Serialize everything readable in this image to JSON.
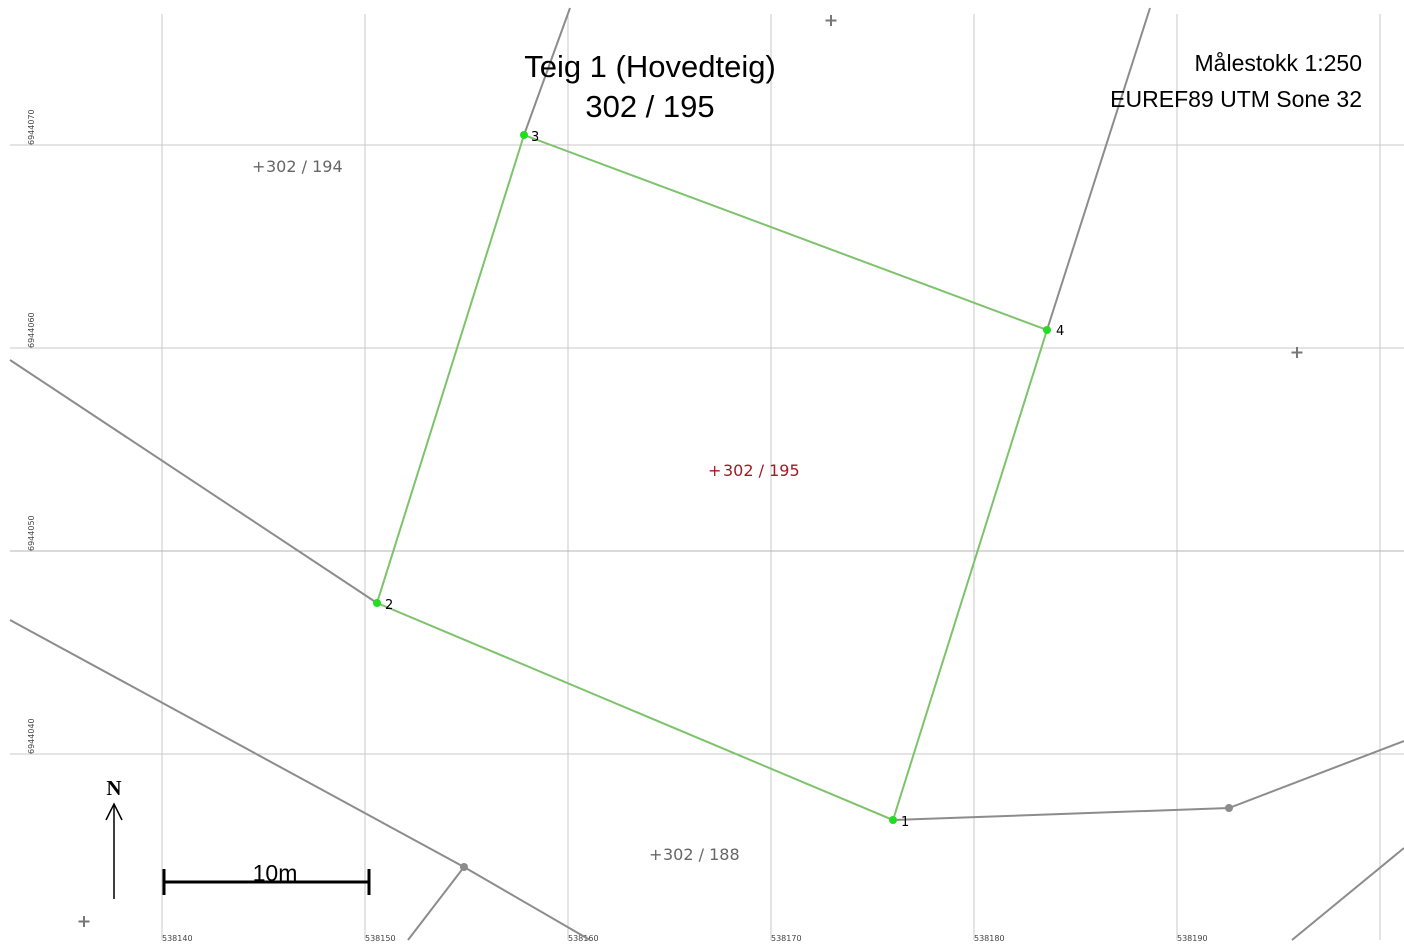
{
  "map": {
    "title": "Teig 1 (Hovedteig)",
    "subtitle": "302 / 195",
    "scale_text": "Målestokk 1:250",
    "crs_text": "EUREF89 UTM Sone 32",
    "north_label": "N",
    "scale_bar_label": "10m",
    "colors": {
      "parcel_boundary": "#7dc36b",
      "parcel_vertex": "#22dd22",
      "grid": "#c8c8c8",
      "neighbor_boundary": "#8c8c8c",
      "label_gray": "#666666",
      "label_highlight": "#a11a22"
    },
    "grid": {
      "x_labels": [
        "538140",
        "538150",
        "538160",
        "538170",
        "538180",
        "538190"
      ],
      "y_labels": [
        "6944070",
        "6944060",
        "6944050",
        "6944040"
      ]
    },
    "parcel_labels": {
      "p194": "302 / 194",
      "p195": "302 / 195",
      "p188": "302 / 188"
    },
    "vertices": [
      "1",
      "2",
      "3",
      "4"
    ]
  }
}
